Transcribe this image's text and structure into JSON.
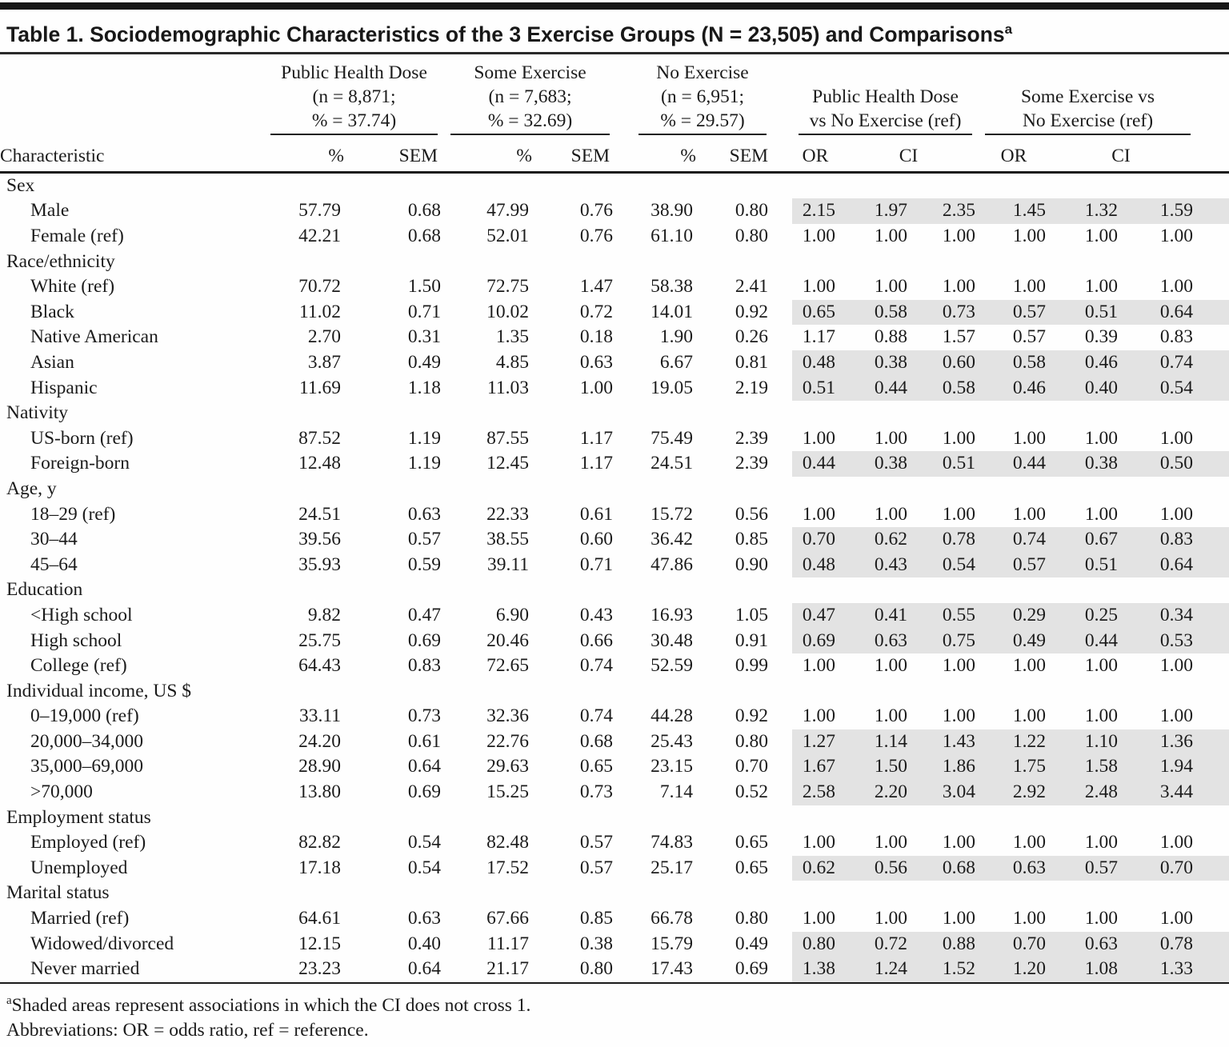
{
  "title": {
    "text": "Table 1. Sociodemographic Characteristics of the 3 Exercise Groups (N = 23,505) and Comparisons",
    "superscript": "a"
  },
  "header": {
    "characteristic_label": "Characteristic",
    "groups": [
      {
        "name": "Public Health Dose",
        "lines": [
          "Public Health Dose",
          "(n = 8,871;",
          "% = 37.74)"
        ],
        "sub": [
          "%",
          "SEM"
        ]
      },
      {
        "name": "Some Exercise",
        "lines": [
          "Some Exercise",
          "(n = 7,683;",
          "% = 32.69)"
        ],
        "sub": [
          "%",
          "SEM"
        ]
      },
      {
        "name": "No Exercise",
        "lines": [
          "No Exercise",
          "(n = 6,951;",
          "% = 29.57)"
        ],
        "sub": [
          "%",
          "SEM"
        ]
      },
      {
        "name": "Public Health Dose vs No Exercise",
        "lines": [
          "Public Health Dose",
          "vs No Exercise (ref)"
        ],
        "sub": [
          "OR",
          "CI"
        ]
      },
      {
        "name": "Some Exercise vs No Exercise",
        "lines": [
          "Some Exercise vs",
          "No Exercise (ref)"
        ],
        "sub": [
          "OR",
          "CI"
        ]
      }
    ]
  },
  "sections": [
    {
      "label": "Sex",
      "rows": [
        {
          "label": "Male",
          "values": [
            "57.79",
            "0.68",
            "47.99",
            "0.76",
            "38.90",
            "0.80",
            "2.15",
            "1.97",
            "2.35",
            "1.45",
            "1.32",
            "1.59"
          ],
          "shaded": true
        },
        {
          "label": "Female (ref)",
          "values": [
            "42.21",
            "0.68",
            "52.01",
            "0.76",
            "61.10",
            "0.80",
            "1.00",
            "1.00",
            "1.00",
            "1.00",
            "1.00",
            "1.00"
          ],
          "shaded": false
        }
      ]
    },
    {
      "label": "Race/ethnicity",
      "rows": [
        {
          "label": "White (ref)",
          "values": [
            "70.72",
            "1.50",
            "72.75",
            "1.47",
            "58.38",
            "2.41",
            "1.00",
            "1.00",
            "1.00",
            "1.00",
            "1.00",
            "1.00"
          ],
          "shaded": false
        },
        {
          "label": "Black",
          "values": [
            "11.02",
            "0.71",
            "10.02",
            "0.72",
            "14.01",
            "0.92",
            "0.65",
            "0.58",
            "0.73",
            "0.57",
            "0.51",
            "0.64"
          ],
          "shaded": true
        },
        {
          "label": "Native American",
          "values": [
            "2.70",
            "0.31",
            "1.35",
            "0.18",
            "1.90",
            "0.26",
            "1.17",
            "0.88",
            "1.57",
            "0.57",
            "0.39",
            "0.83"
          ],
          "shaded": false
        },
        {
          "label": "Asian",
          "values": [
            "3.87",
            "0.49",
            "4.85",
            "0.63",
            "6.67",
            "0.81",
            "0.48",
            "0.38",
            "0.60",
            "0.58",
            "0.46",
            "0.74"
          ],
          "shaded": true
        },
        {
          "label": "Hispanic",
          "values": [
            "11.69",
            "1.18",
            "11.03",
            "1.00",
            "19.05",
            "2.19",
            "0.51",
            "0.44",
            "0.58",
            "0.46",
            "0.40",
            "0.54"
          ],
          "shaded": true
        }
      ]
    },
    {
      "label": "Nativity",
      "rows": [
        {
          "label": "US-born (ref)",
          "values": [
            "87.52",
            "1.19",
            "87.55",
            "1.17",
            "75.49",
            "2.39",
            "1.00",
            "1.00",
            "1.00",
            "1.00",
            "1.00",
            "1.00"
          ],
          "shaded": false
        },
        {
          "label": "Foreign-born",
          "values": [
            "12.48",
            "1.19",
            "12.45",
            "1.17",
            "24.51",
            "2.39",
            "0.44",
            "0.38",
            "0.51",
            "0.44",
            "0.38",
            "0.50"
          ],
          "shaded": true
        }
      ]
    },
    {
      "label": "Age, y",
      "rows": [
        {
          "label": "18–29 (ref)",
          "values": [
            "24.51",
            "0.63",
            "22.33",
            "0.61",
            "15.72",
            "0.56",
            "1.00",
            "1.00",
            "1.00",
            "1.00",
            "1.00",
            "1.00"
          ],
          "shaded": false
        },
        {
          "label": "30–44",
          "values": [
            "39.56",
            "0.57",
            "38.55",
            "0.60",
            "36.42",
            "0.85",
            "0.70",
            "0.62",
            "0.78",
            "0.74",
            "0.67",
            "0.83"
          ],
          "shaded": true
        },
        {
          "label": "45–64",
          "values": [
            "35.93",
            "0.59",
            "39.11",
            "0.71",
            "47.86",
            "0.90",
            "0.48",
            "0.43",
            "0.54",
            "0.57",
            "0.51",
            "0.64"
          ],
          "shaded": true
        }
      ]
    },
    {
      "label": "Education",
      "rows": [
        {
          "label": "<High school",
          "values": [
            "9.82",
            "0.47",
            "6.90",
            "0.43",
            "16.93",
            "1.05",
            "0.47",
            "0.41",
            "0.55",
            "0.29",
            "0.25",
            "0.34"
          ],
          "shaded": true
        },
        {
          "label": "High school",
          "values": [
            "25.75",
            "0.69",
            "20.46",
            "0.66",
            "30.48",
            "0.91",
            "0.69",
            "0.63",
            "0.75",
            "0.49",
            "0.44",
            "0.53"
          ],
          "shaded": true
        },
        {
          "label": "College (ref)",
          "values": [
            "64.43",
            "0.83",
            "72.65",
            "0.74",
            "52.59",
            "0.99",
            "1.00",
            "1.00",
            "1.00",
            "1.00",
            "1.00",
            "1.00"
          ],
          "shaded": false
        }
      ]
    },
    {
      "label": "Individual income, US $",
      "rows": [
        {
          "label": "0–19,000 (ref)",
          "values": [
            "33.11",
            "0.73",
            "32.36",
            "0.74",
            "44.28",
            "0.92",
            "1.00",
            "1.00",
            "1.00",
            "1.00",
            "1.00",
            "1.00"
          ],
          "shaded": false
        },
        {
          "label": "20,000–34,000",
          "values": [
            "24.20",
            "0.61",
            "22.76",
            "0.68",
            "25.43",
            "0.80",
            "1.27",
            "1.14",
            "1.43",
            "1.22",
            "1.10",
            "1.36"
          ],
          "shaded": true
        },
        {
          "label": "35,000–69,000",
          "values": [
            "28.90",
            "0.64",
            "29.63",
            "0.65",
            "23.15",
            "0.70",
            "1.67",
            "1.50",
            "1.86",
            "1.75",
            "1.58",
            "1.94"
          ],
          "shaded": true
        },
        {
          "label": ">70,000",
          "values": [
            "13.80",
            "0.69",
            "15.25",
            "0.73",
            "7.14",
            "0.52",
            "2.58",
            "2.20",
            "3.04",
            "2.92",
            "2.48",
            "3.44"
          ],
          "shaded": true
        }
      ]
    },
    {
      "label": "Employment status",
      "rows": [
        {
          "label": "Employed (ref)",
          "values": [
            "82.82",
            "0.54",
            "82.48",
            "0.57",
            "74.83",
            "0.65",
            "1.00",
            "1.00",
            "1.00",
            "1.00",
            "1.00",
            "1.00"
          ],
          "shaded": false
        },
        {
          "label": "Unemployed",
          "values": [
            "17.18",
            "0.54",
            "17.52",
            "0.57",
            "25.17",
            "0.65",
            "0.62",
            "0.56",
            "0.68",
            "0.63",
            "0.57",
            "0.70"
          ],
          "shaded": true
        }
      ]
    },
    {
      "label": "Marital status",
      "rows": [
        {
          "label": "Married (ref)",
          "values": [
            "64.61",
            "0.63",
            "67.66",
            "0.85",
            "66.78",
            "0.80",
            "1.00",
            "1.00",
            "1.00",
            "1.00",
            "1.00",
            "1.00"
          ],
          "shaded": false
        },
        {
          "label": "Widowed/divorced",
          "values": [
            "12.15",
            "0.40",
            "11.17",
            "0.38",
            "15.79",
            "0.49",
            "0.80",
            "0.72",
            "0.88",
            "0.70",
            "0.63",
            "0.78"
          ],
          "shaded": true
        },
        {
          "label": "Never married",
          "values": [
            "23.23",
            "0.64",
            "21.17",
            "0.80",
            "17.43",
            "0.69",
            "1.38",
            "1.24",
            "1.52",
            "1.20",
            "1.08",
            "1.33"
          ],
          "shaded": true
        }
      ]
    }
  ],
  "footnotes": [
    {
      "superscript": "a",
      "text": "Shaded areas represent associations in which the CI does not cross 1."
    },
    {
      "superscript": "",
      "text": "Abbreviations: OR = odds ratio, ref = reference."
    }
  ],
  "colors": {
    "shaded_row": "#e3e3e3",
    "rule": "#1a1a1a"
  }
}
